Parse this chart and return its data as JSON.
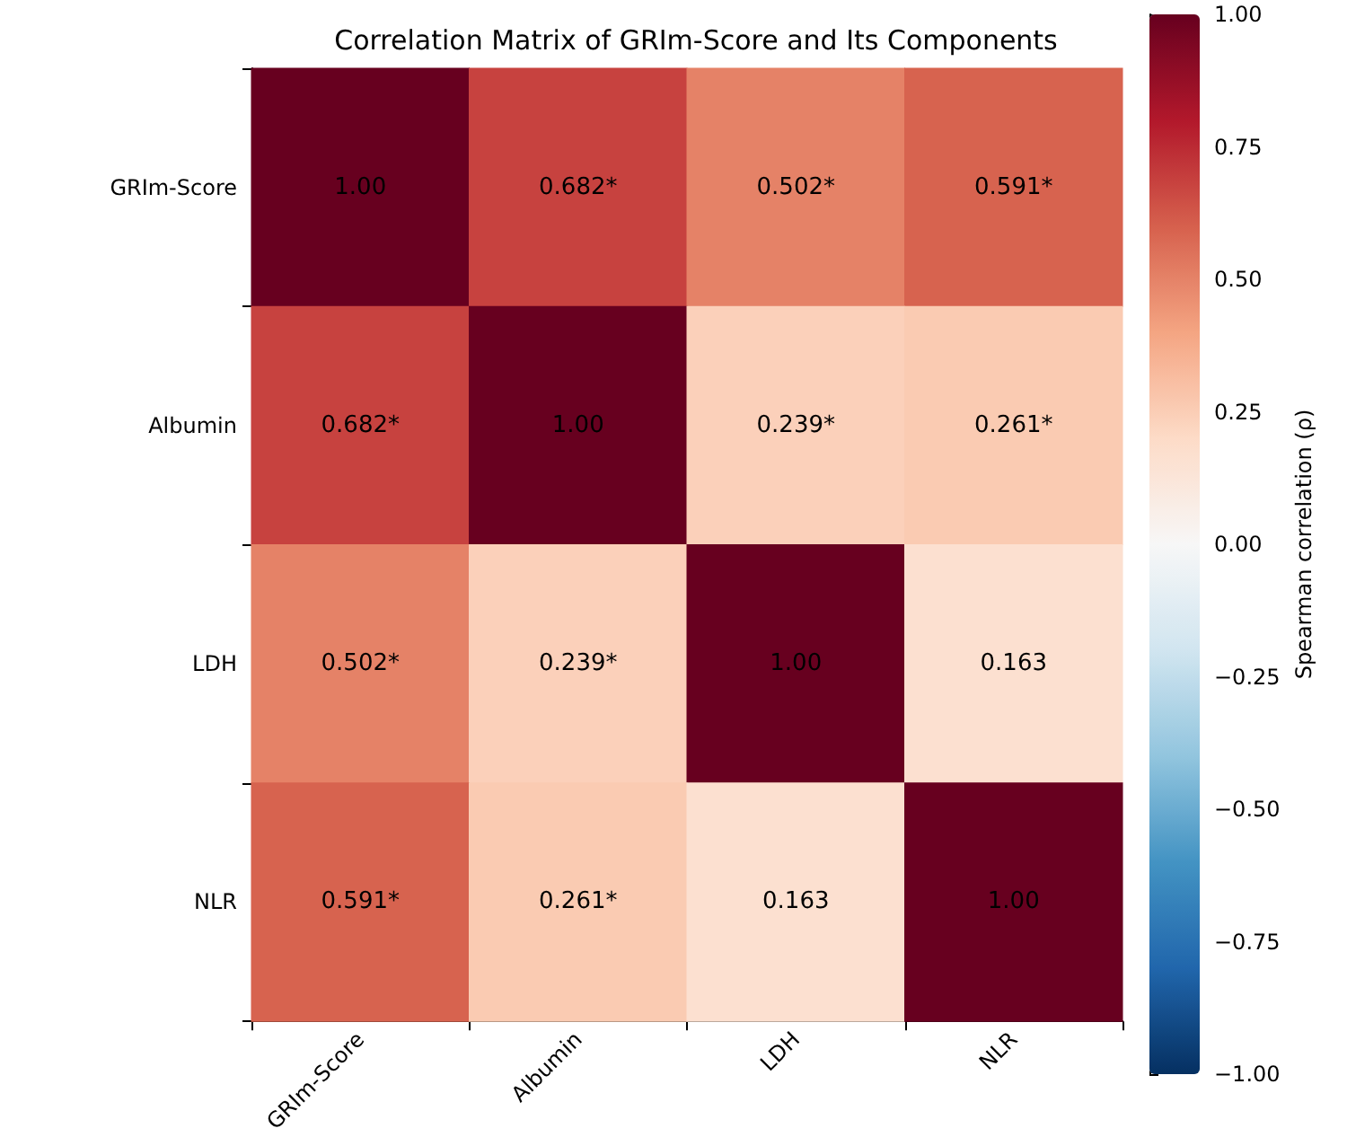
{
  "chart_data": {
    "type": "heatmap",
    "title": "Correlation Matrix of GRIm-Score and Its Components",
    "categories": [
      "GRIm-Score",
      "Albumin",
      "LDH",
      "NLR"
    ],
    "y_categories": [
      "GRIm-Score",
      "Albumin",
      "LDH",
      "NLR"
    ],
    "cells": [
      [
        1.0,
        0.682,
        0.502,
        0.591
      ],
      [
        0.682,
        1.0,
        0.239,
        0.261
      ],
      [
        0.502,
        0.239,
        1.0,
        0.163
      ],
      [
        0.591,
        0.261,
        0.163,
        1.0
      ]
    ],
    "cell_labels": [
      [
        "1.00",
        "0.682*",
        "0.502*",
        "0.591*"
      ],
      [
        "0.682*",
        "1.00",
        "0.239*",
        "0.261*"
      ],
      [
        "0.502*",
        "0.239*",
        "1.00",
        "0.163"
      ],
      [
        "0.591*",
        "0.261*",
        "0.163",
        "1.00"
      ]
    ],
    "clim": [
      -1,
      1
    ],
    "cticks": [
      {
        "value": -1,
        "label": "−1.00"
      },
      {
        "value": -0.75,
        "label": "−0.75"
      },
      {
        "value": -0.5,
        "label": "−0.50"
      },
      {
        "value": -0.25,
        "label": "−0.25"
      },
      {
        "value": 0,
        "label": "0.00"
      },
      {
        "value": 0.25,
        "label": "0.25"
      },
      {
        "value": 0.5,
        "label": "0.50"
      },
      {
        "value": 0.75,
        "label": "0.75"
      },
      {
        "value": 1,
        "label": "1.00"
      }
    ],
    "clabel": "Spearman correlation (ρ)"
  }
}
